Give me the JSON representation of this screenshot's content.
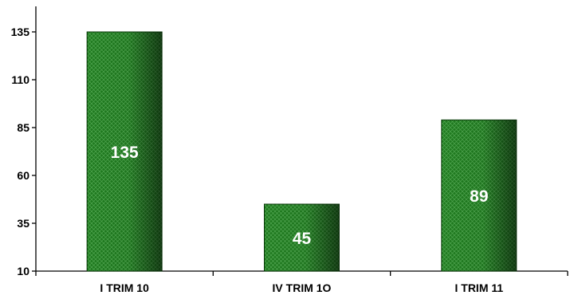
{
  "chart_data": {
    "type": "bar",
    "title": "",
    "xlabel": "",
    "ylabel": "",
    "categories": [
      "I TRIM 10",
      "IV TRIM 1O",
      "I TRIM 11"
    ],
    "values": [
      135,
      45,
      89
    ],
    "data_labels": [
      "135",
      "45",
      "89"
    ],
    "ylim": [
      10,
      135
    ],
    "yticks": [
      10,
      35,
      60,
      85,
      110,
      135
    ],
    "ytick_labels": [
      "10",
      "35",
      "60",
      "85",
      "110",
      "135"
    ],
    "grid": false,
    "legend": "none",
    "colors": {
      "bar_fill": "#1f7a1f",
      "bar_dark": "#0a3a0a",
      "bar_hatch": "#52a852",
      "label": "#ffffff",
      "axis": "#000000"
    }
  }
}
